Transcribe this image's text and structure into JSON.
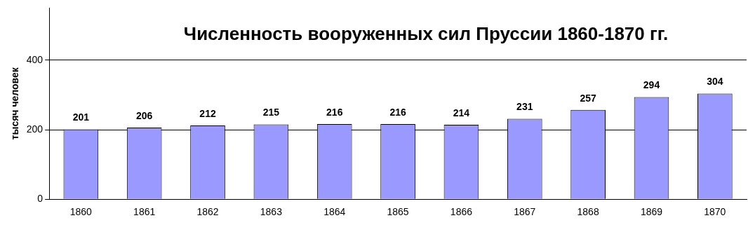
{
  "chart_data": {
    "type": "bar",
    "title": "Численность вооруженных сил Пруссии 1860-1870 гг.",
    "ylabel": "тысяч человек",
    "categories": [
      "1860",
      "1861",
      "1862",
      "1863",
      "1864",
      "1865",
      "1866",
      "1867",
      "1868",
      "1869",
      "1870"
    ],
    "values": [
      201,
      206,
      212,
      215,
      216,
      216,
      214,
      231,
      257,
      294,
      304
    ],
    "color": "#9999ff",
    "ylim": [
      0,
      550
    ],
    "yticks": [
      0,
      200,
      400
    ],
    "grid": "y",
    "data_labels": true,
    "legend": false
  }
}
